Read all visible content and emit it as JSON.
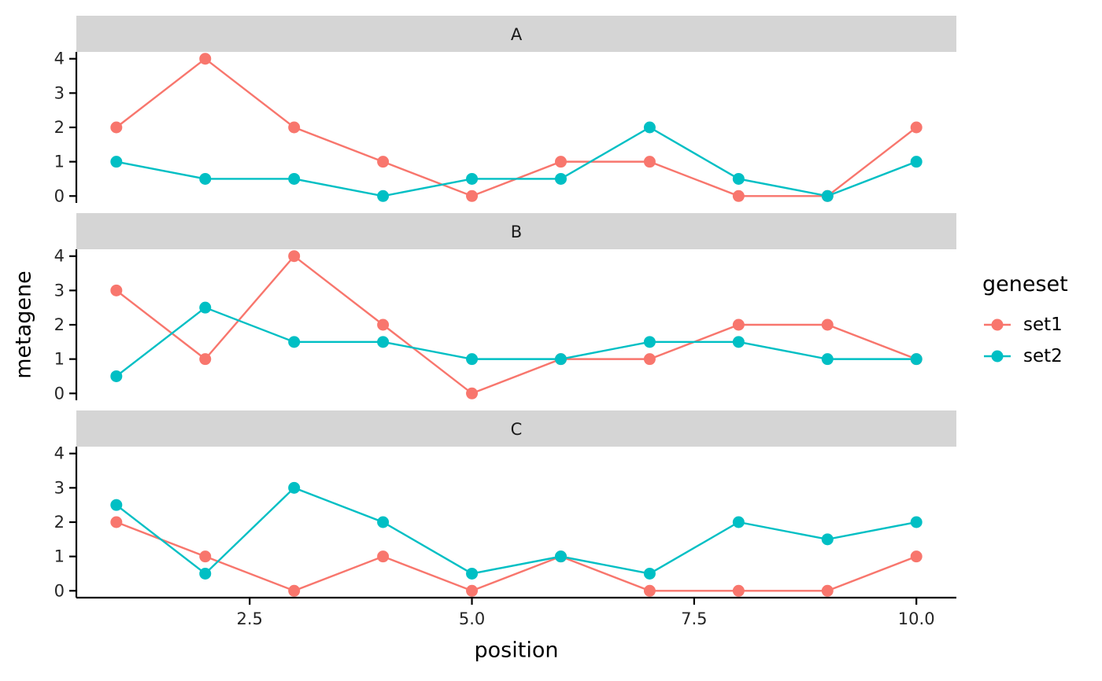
{
  "chart_data": {
    "type": "line",
    "x": [
      1,
      2,
      3,
      4,
      5,
      6,
      7,
      8,
      9,
      10
    ],
    "xlabel": "position",
    "ylabel": "metagene",
    "xlim": [
      0.55,
      10.45
    ],
    "ylim": [
      -0.2,
      4.2
    ],
    "x_ticks": [
      2.5,
      5.0,
      7.5,
      10.0
    ],
    "x_tick_labels": [
      "2.5",
      "5.0",
      "7.5",
      "10.0"
    ],
    "y_ticks": [
      0,
      1,
      2,
      3,
      4
    ],
    "y_tick_labels": [
      "0",
      "1",
      "2",
      "3",
      "4"
    ],
    "grid": false,
    "legend_position": "right",
    "facets": [
      {
        "label": "A",
        "series": [
          {
            "name": "set1",
            "values": [
              2,
              4,
              2,
              1,
              0,
              1,
              1,
              0,
              0,
              2
            ]
          },
          {
            "name": "set2",
            "values": [
              1,
              0.5,
              0.5,
              0,
              0.5,
              0.5,
              2,
              0.5,
              0,
              1
            ]
          }
        ]
      },
      {
        "label": "B",
        "series": [
          {
            "name": "set1",
            "values": [
              3,
              1,
              4,
              2,
              0,
              1,
              1,
              2,
              2,
              1
            ]
          },
          {
            "name": "set2",
            "values": [
              0.5,
              2.5,
              1.5,
              1.5,
              1,
              1,
              1.5,
              1.5,
              1,
              1
            ]
          }
        ]
      },
      {
        "label": "C",
        "series": [
          {
            "name": "set1",
            "values": [
              2,
              1,
              0,
              1,
              0,
              1,
              0,
              0,
              0,
              1
            ]
          },
          {
            "name": "set2",
            "values": [
              2.5,
              0.5,
              3,
              2,
              0.5,
              1,
              0.5,
              2,
              1.5,
              2
            ]
          }
        ]
      }
    ],
    "series_colors": {
      "set1": "#F8766D",
      "set2": "#00BFC4"
    }
  },
  "legend": {
    "title": "geneset",
    "items": [
      {
        "label": "set1",
        "color": "#F8766D"
      },
      {
        "label": "set2",
        "color": "#00BFC4"
      }
    ]
  },
  "style_colors": {
    "strip_fill": "#D5D5D5",
    "strip_text": "#1A1A1A",
    "axis_line": "#000000",
    "tick_text": "#262626",
    "background": "#FFFFFF"
  }
}
